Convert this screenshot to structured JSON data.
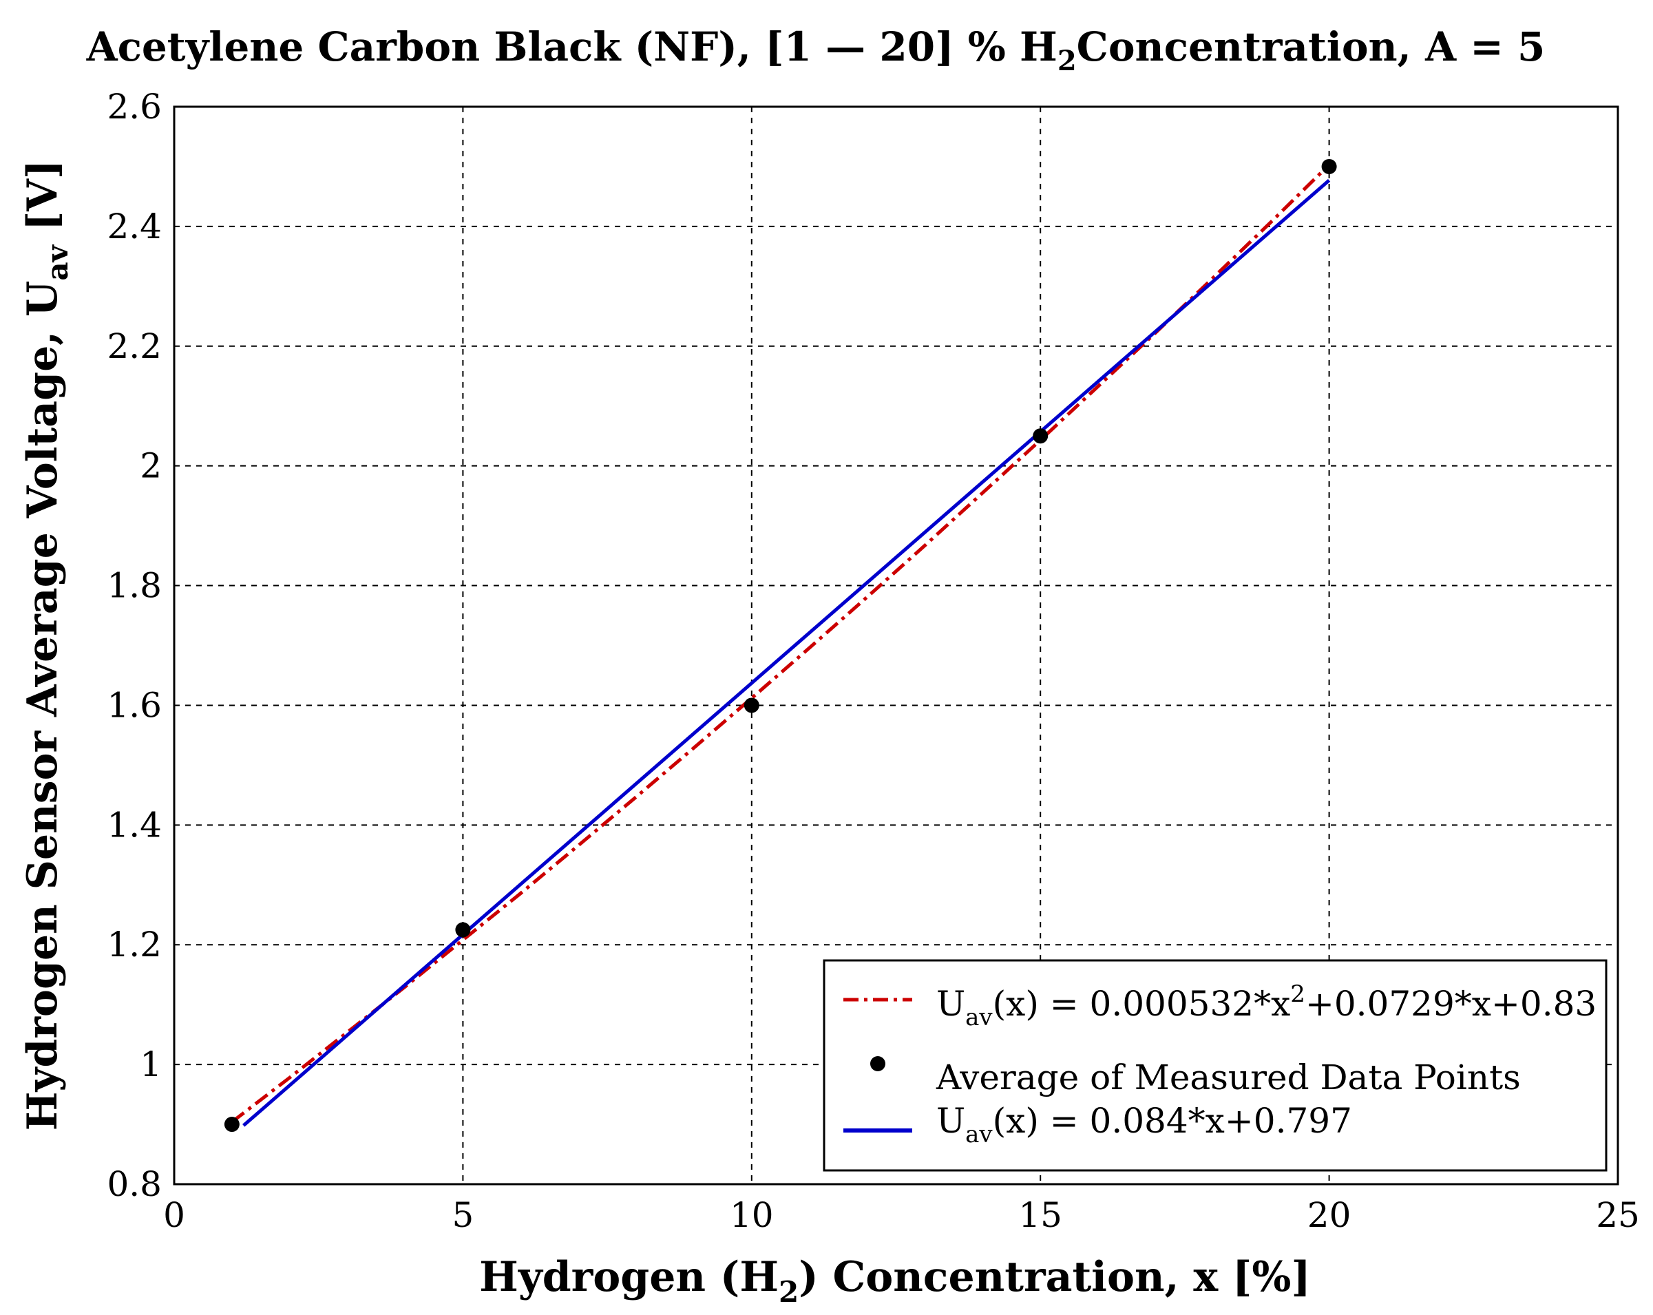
{
  "chart_data": {
    "type": "line",
    "title": {
      "main": "Acetylene Carbon Black (NF), [1 — 20] % H",
      "sub": "2",
      "rest": "Concentration, A = 5"
    },
    "xlabel": {
      "main": "Hydrogen (H",
      "sub": "2",
      "rest": ") Concentration, x [%]"
    },
    "ylabel": {
      "main": "Hydrogen Sensor Average Voltage, U",
      "sub": "av",
      "rest": " [V]"
    },
    "xlim": [
      0,
      25
    ],
    "ylim": [
      0.8,
      2.6
    ],
    "xticks": [
      0,
      5,
      10,
      15,
      20,
      25
    ],
    "xtick_labels": [
      "0",
      "5",
      "10",
      "15",
      "20",
      "25"
    ],
    "yticks": [
      0.8,
      1.0,
      1.2,
      1.4,
      1.6,
      1.8,
      2.0,
      2.2,
      2.4,
      2.6
    ],
    "ytick_labels": [
      "0.8",
      "1",
      "1.2",
      "1.4",
      "1.6",
      "1.8",
      "2",
      "2.2",
      "2.4",
      "2.6"
    ],
    "grid": true,
    "legend_position": "bottom-right",
    "series": [
      {
        "name": "quadratic-fit",
        "style": "dash-dot",
        "color": "#cc0000",
        "legend": {
          "u": "U",
          "sub": "av",
          "mid": "(x) = 0.000532*x",
          "sup": "2",
          "end": "+0.0729*x+0.83"
        },
        "x": [
          1,
          2,
          3,
          4,
          5,
          6,
          7,
          8,
          9,
          10,
          11,
          12,
          13,
          14,
          15,
          16,
          17,
          18,
          19,
          20
        ],
        "y": [
          0.904,
          0.978,
          1.054,
          1.13,
          1.208,
          1.286,
          1.366,
          1.447,
          1.529,
          1.612,
          1.696,
          1.781,
          1.867,
          1.955,
          2.043,
          2.133,
          2.223,
          2.315,
          2.408,
          2.503
        ]
      },
      {
        "name": "measured-averages",
        "style": "markers",
        "color": "#000000",
        "legend": {
          "text": "Average of Measured Data Points"
        },
        "x": [
          1,
          5,
          10,
          15,
          20
        ],
        "y": [
          0.9,
          1.225,
          1.6,
          2.05,
          2.5
        ]
      },
      {
        "name": "linear-fit",
        "style": "solid",
        "color": "#0000cc",
        "legend": {
          "u": "U",
          "sub": "av",
          "mid": "(x) = 0.084*x+0.797",
          "sup": "",
          "end": ""
        },
        "x": [
          1.2,
          20
        ],
        "y": [
          0.898,
          2.477
        ]
      }
    ]
  }
}
